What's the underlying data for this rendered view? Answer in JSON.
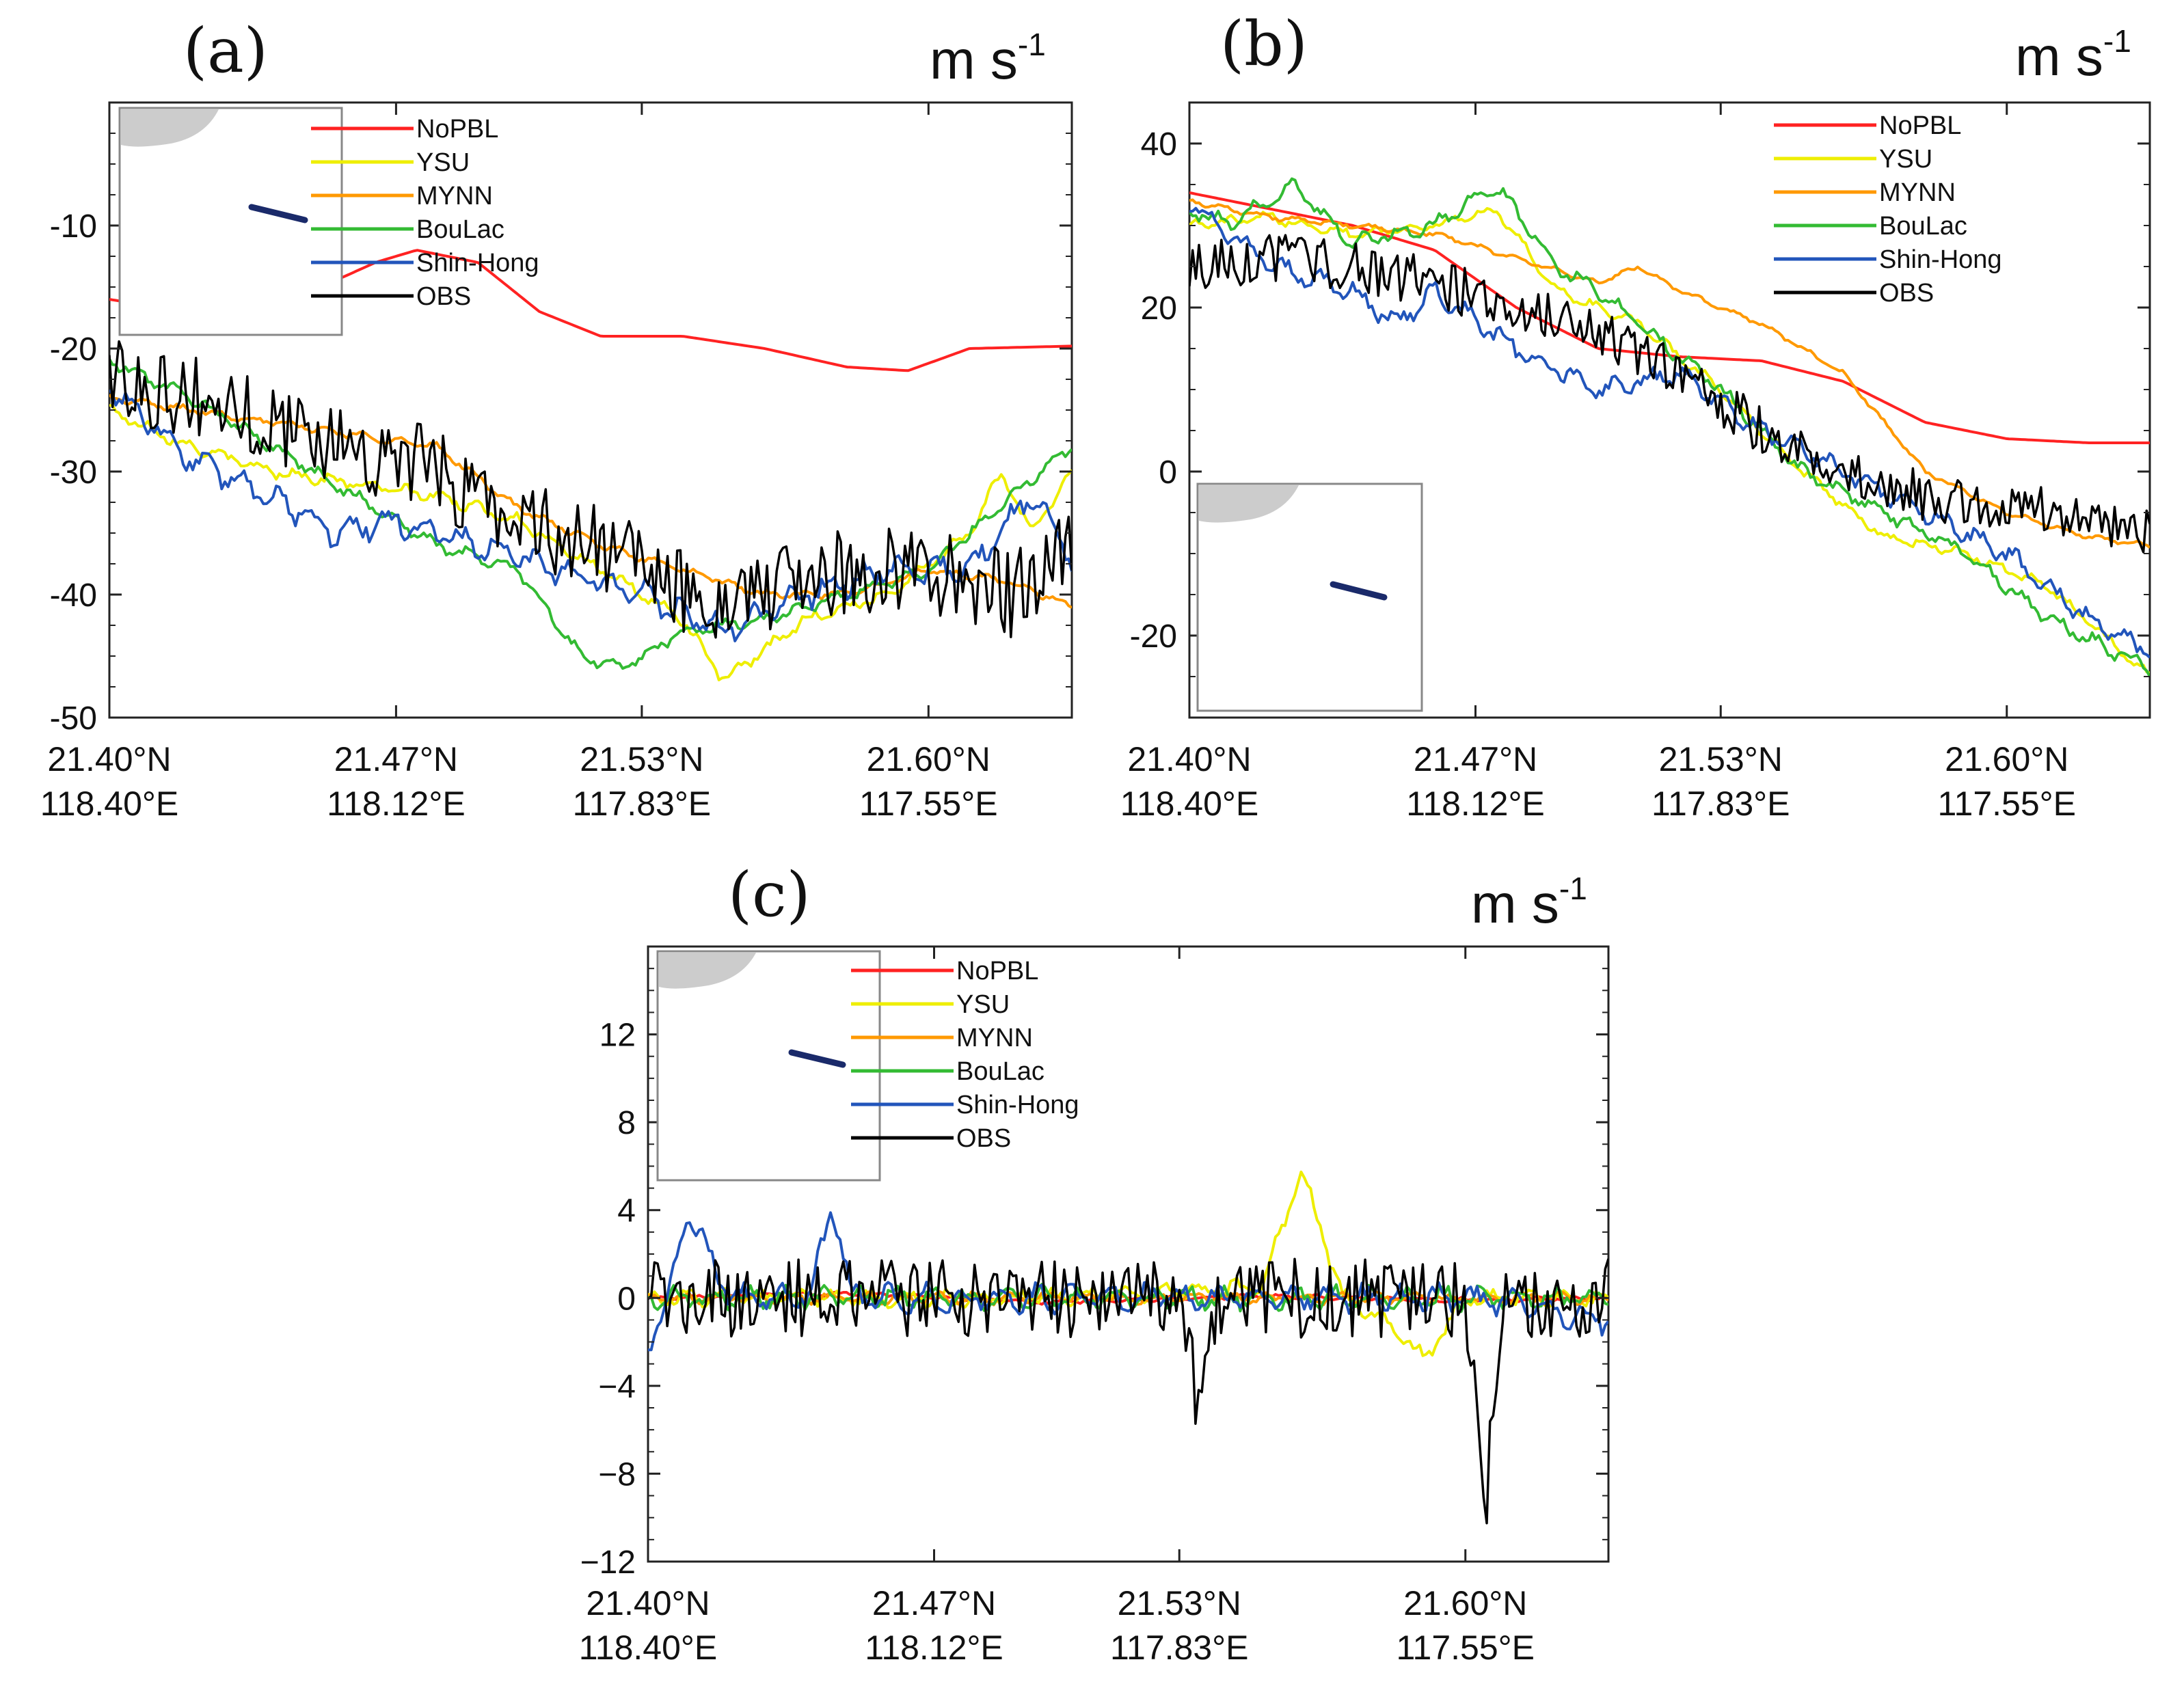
{
  "chart_data": [
    {
      "type": "line",
      "panel_label": "(a)",
      "unit": "m s",
      "unit_exponent": "-1",
      "legend_placement": "top-center",
      "inset_map": true,
      "ylim": [
        -50,
        0
      ],
      "yticks": [
        -50,
        -40,
        -30,
        -20,
        -10
      ],
      "ytick_labels": [
        "-50",
        "-40",
        "-30",
        "-20",
        "-10"
      ],
      "xlim": [
        21.4,
        21.635
      ],
      "xticks": [
        21.4,
        21.47,
        21.53,
        21.6
      ],
      "xtick_labels": [
        {
          "lat": "21.40°N",
          "lon": "118.40°E"
        },
        {
          "lat": "21.47°N",
          "lon": "118.12°E"
        },
        {
          "lat": "21.53°N",
          "lon": "117.83°E"
        },
        {
          "lat": "21.60°N",
          "lon": "117.55°E"
        }
      ],
      "series": [
        {
          "name": "NoPBL",
          "color": "#ff2222",
          "noise": 0,
          "x": [
            21.4,
            21.415,
            21.43,
            21.445,
            21.455,
            21.465,
            21.475,
            21.49,
            21.505,
            21.52,
            21.54,
            21.56,
            21.58,
            21.595,
            21.61,
            21.635
          ],
          "y": [
            -16,
            -16.8,
            -16.5,
            -17,
            -14.5,
            -13,
            -12,
            -13,
            -17,
            -19,
            -19,
            -20,
            -21.5,
            -21.8,
            -20,
            -19.8
          ]
        },
        {
          "name": "YSU",
          "color": "#eeee00",
          "noise": 0.8,
          "x": [
            21.4,
            21.42,
            21.44,
            21.46,
            21.48,
            21.5,
            21.52,
            21.54,
            21.55,
            21.57,
            21.59,
            21.61,
            21.618,
            21.625,
            21.635
          ],
          "y": [
            -25,
            -28,
            -30,
            -31,
            -32,
            -34,
            -38,
            -42,
            -47,
            -42,
            -40,
            -35,
            -30,
            -35,
            -30
          ]
        },
        {
          "name": "MYNN",
          "color": "#ff9900",
          "noise": 0.5,
          "x": [
            21.4,
            21.42,
            21.44,
            21.46,
            21.48,
            21.5,
            21.52,
            21.54,
            21.56,
            21.58,
            21.6,
            21.62,
            21.635
          ],
          "y": [
            -24,
            -25,
            -26,
            -27,
            -28,
            -33,
            -36,
            -38,
            -40,
            -40,
            -38,
            -39,
            -41
          ]
        },
        {
          "name": "BouLac",
          "color": "#33bb33",
          "noise": 0.8,
          "x": [
            21.4,
            21.42,
            21.44,
            21.46,
            21.48,
            21.5,
            21.515,
            21.525,
            21.54,
            21.56,
            21.58,
            21.6,
            21.62,
            21.635
          ],
          "y": [
            -21,
            -24,
            -28,
            -32,
            -36,
            -38,
            -45,
            -46,
            -43,
            -42,
            -40,
            -38,
            -32,
            -28
          ]
        },
        {
          "name": "Shin-Hong",
          "color": "#2255bb",
          "noise": 1.8,
          "x": [
            21.4,
            21.42,
            21.44,
            21.455,
            21.47,
            21.49,
            21.51,
            21.53,
            21.55,
            21.57,
            21.59,
            21.61,
            21.625,
            21.635
          ],
          "y": [
            -23,
            -29,
            -32,
            -35,
            -34,
            -36,
            -38,
            -40,
            -43,
            -40,
            -38,
            -38,
            -32,
            -37
          ]
        },
        {
          "name": "OBS",
          "color": "#000000",
          "noise": 3.5,
          "x": [
            21.4,
            21.42,
            21.44,
            21.46,
            21.48,
            21.5,
            21.52,
            21.54,
            21.56,
            21.58,
            21.6,
            21.62,
            21.635
          ],
          "y": [
            -22,
            -24,
            -26,
            -28,
            -30,
            -34,
            -36,
            -40,
            -40,
            -38,
            -38,
            -40,
            -36
          ]
        }
      ]
    },
    {
      "type": "line",
      "panel_label": "(b)",
      "unit": "m s",
      "unit_exponent": "-1",
      "legend_placement": "top-right",
      "inset_map": true,
      "ylim": [
        -30,
        45
      ],
      "yticks": [
        -20,
        0,
        20,
        40
      ],
      "ytick_labels": [
        "-20",
        "0",
        "20",
        "40"
      ],
      "xlim": [
        21.4,
        21.635
      ],
      "xticks": [
        21.4,
        21.47,
        21.53,
        21.6
      ],
      "xtick_labels": [
        {
          "lat": "21.40°N",
          "lon": "118.40°E"
        },
        {
          "lat": "21.47°N",
          "lon": "118.12°E"
        },
        {
          "lat": "21.53°N",
          "lon": "117.83°E"
        },
        {
          "lat": "21.60°N",
          "lon": "117.55°E"
        }
      ],
      "series": [
        {
          "name": "NoPBL",
          "color": "#ff2222",
          "noise": 0,
          "x": [
            21.4,
            21.42,
            21.44,
            21.46,
            21.48,
            21.5,
            21.52,
            21.54,
            21.56,
            21.58,
            21.6,
            21.62,
            21.635
          ],
          "y": [
            34,
            32,
            30,
            27,
            20,
            15,
            14,
            13.5,
            11,
            6,
            4,
            3.5,
            3.5
          ]
        },
        {
          "name": "YSU",
          "color": "#eeee00",
          "noise": 1.0,
          "x": [
            21.4,
            21.42,
            21.44,
            21.46,
            21.475,
            21.49,
            21.51,
            21.53,
            21.55,
            21.57,
            21.59,
            21.61,
            21.635
          ],
          "y": [
            30,
            31,
            29,
            30,
            32,
            22,
            18,
            10,
            0,
            -8,
            -10,
            -14,
            -25
          ]
        },
        {
          "name": "MYNN",
          "color": "#ff9900",
          "noise": 0.5,
          "x": [
            21.4,
            21.42,
            21.44,
            21.46,
            21.48,
            21.5,
            21.51,
            21.52,
            21.54,
            21.56,
            21.58,
            21.6,
            21.62,
            21.635
          ],
          "y": [
            33,
            31,
            30,
            29,
            26,
            23,
            25,
            22,
            18,
            12,
            0,
            -5,
            -8,
            -9
          ]
        },
        {
          "name": "BouLac",
          "color": "#33bb33",
          "noise": 1.5,
          "x": [
            21.4,
            21.41,
            21.425,
            21.44,
            21.46,
            21.475,
            21.49,
            21.5,
            21.51,
            21.53,
            21.55,
            21.57,
            21.59,
            21.61,
            21.635
          ],
          "y": [
            32,
            30,
            35,
            28,
            30,
            35,
            25,
            22,
            18,
            10,
            0,
            -5,
            -10,
            -18,
            -24
          ]
        },
        {
          "name": "Shin-Hong",
          "color": "#2255bb",
          "noise": 2.0,
          "x": [
            21.4,
            21.42,
            21.44,
            21.45,
            21.46,
            21.48,
            21.5,
            21.52,
            21.54,
            21.56,
            21.58,
            21.6,
            21.62,
            21.635
          ],
          "y": [
            33,
            25,
            22,
            18,
            22,
            15,
            10,
            12,
            5,
            0,
            -5,
            -10,
            -18,
            -22
          ]
        },
        {
          "name": "OBS",
          "color": "#000000",
          "noise": 3.0,
          "x": [
            21.4,
            21.42,
            21.44,
            21.46,
            21.48,
            21.5,
            21.52,
            21.54,
            21.56,
            21.58,
            21.6,
            21.62,
            21.635
          ],
          "y": [
            25,
            26,
            25,
            23,
            20,
            17,
            12,
            5,
            0,
            -3,
            -4,
            -6,
            -7
          ]
        }
      ]
    },
    {
      "type": "line",
      "panel_label": "(c)",
      "unit": "m s",
      "unit_exponent": "-1",
      "legend_placement": "top-center",
      "inset_map": true,
      "ylim": [
        -12,
        16
      ],
      "yticks": [
        -12,
        -8,
        -4,
        0,
        4,
        8,
        12
      ],
      "ytick_labels": [
        "−12",
        "−8",
        "−4",
        "0",
        "4",
        "8",
        "12"
      ],
      "xlim": [
        21.4,
        21.635
      ],
      "xticks": [
        21.4,
        21.47,
        21.53,
        21.6
      ],
      "xtick_labels": [
        {
          "lat": "21.40°N",
          "lon": "118.40°E"
        },
        {
          "lat": "21.47°N",
          "lon": "118.12°E"
        },
        {
          "lat": "21.53°N",
          "lon": "117.83°E"
        },
        {
          "lat": "21.60°N",
          "lon": "117.55°E"
        }
      ],
      "series": [
        {
          "name": "NoPBL",
          "color": "#ff2222",
          "noise": 0.15,
          "x": [
            21.4,
            21.45,
            21.5,
            21.55,
            21.6,
            21.635
          ],
          "y": [
            0,
            0.2,
            -0.2,
            0.1,
            -0.1,
            0
          ]
        },
        {
          "name": "YSU",
          "color": "#eeee00",
          "noise": 0.6,
          "x": [
            21.4,
            21.5,
            21.55,
            21.56,
            21.57,
            21.58,
            21.59,
            21.6,
            21.635
          ],
          "y": [
            0,
            0,
            0.5,
            5.8,
            0,
            -1,
            -2.8,
            0,
            0
          ]
        },
        {
          "name": "MYNN",
          "color": "#ff9900",
          "noise": 0.4,
          "x": [
            21.4,
            21.5,
            21.6,
            21.635
          ],
          "y": [
            0,
            0,
            0,
            0
          ]
        },
        {
          "name": "BouLac",
          "color": "#33bb33",
          "noise": 0.8,
          "x": [
            21.4,
            21.5,
            21.6,
            21.635
          ],
          "y": [
            0,
            0,
            0,
            0
          ]
        },
        {
          "name": "Shin-Hong",
          "color": "#2255bb",
          "noise": 1.0,
          "x": [
            21.4,
            21.405,
            21.41,
            21.42,
            21.43,
            21.44,
            21.445,
            21.45,
            21.46,
            21.5,
            21.6,
            21.635
          ],
          "y": [
            -2,
            0,
            4,
            0,
            0,
            0,
            4.5,
            0,
            0,
            0,
            0,
            -1
          ]
        },
        {
          "name": "OBS",
          "color": "#000000",
          "noise": 1.8,
          "x": [
            21.4,
            21.5,
            21.53,
            21.535,
            21.54,
            21.6,
            21.605,
            21.61,
            21.635
          ],
          "y": [
            0,
            0,
            0,
            -5,
            0,
            0,
            -9,
            0,
            0
          ]
        }
      ]
    }
  ]
}
